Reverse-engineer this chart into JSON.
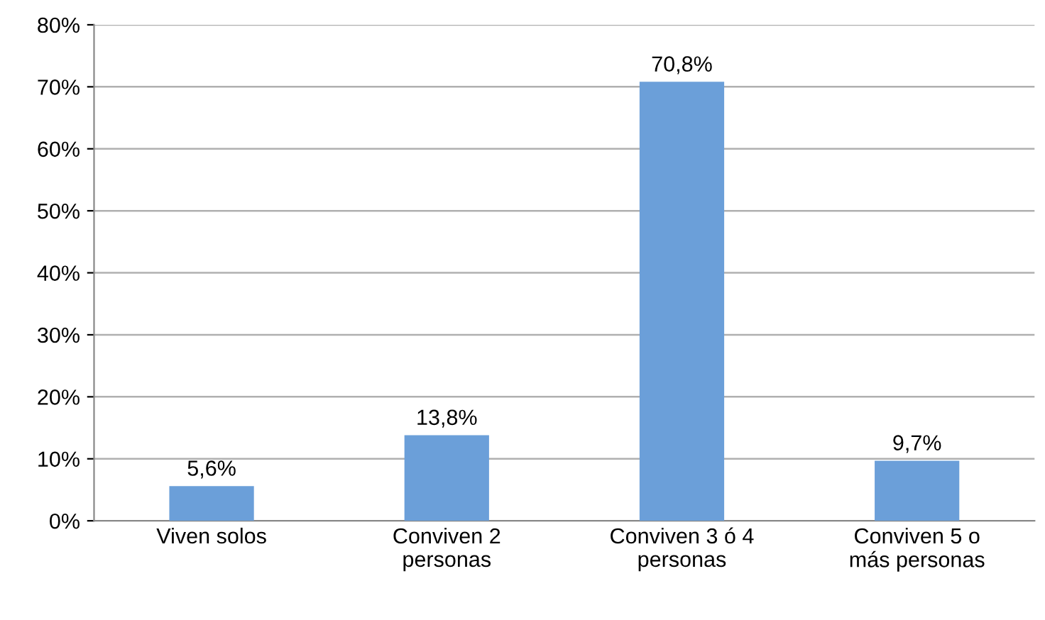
{
  "chart_data": {
    "type": "bar",
    "categories": [
      "Viven solos",
      "Conviven 2\npersonas",
      "Conviven 3 ó 4\npersonas",
      "Conviven 5 o\nmás personas"
    ],
    "values": [
      5.6,
      13.8,
      70.8,
      9.7
    ],
    "value_labels": [
      "5,6%",
      "13,8%",
      "70,8%",
      "9,7%"
    ],
    "color": "#6b9fd9",
    "ylim": [
      0,
      80
    ],
    "yticks": [
      {
        "value": 0,
        "label": "0%"
      },
      {
        "value": 10,
        "label": "10%"
      },
      {
        "value": 20,
        "label": "20%"
      },
      {
        "value": 30,
        "label": "30%"
      },
      {
        "value": 40,
        "label": "40%"
      },
      {
        "value": 50,
        "label": "50%"
      },
      {
        "value": 60,
        "label": "60%"
      },
      {
        "value": 70,
        "label": "70%"
      },
      {
        "value": 80,
        "label": "80%"
      }
    ],
    "grid": "y"
  }
}
